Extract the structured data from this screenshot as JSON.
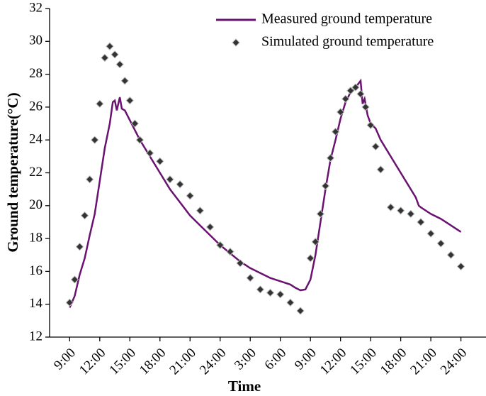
{
  "chart_data": {
    "type": "line_scatter",
    "x_label": "Time",
    "y_label": "Ground temperature(°C)",
    "xlim": [
      7,
      50.5
    ],
    "ylim": [
      12,
      32
    ],
    "yticks": [
      12,
      14,
      16,
      18,
      20,
      22,
      24,
      26,
      28,
      30,
      32
    ],
    "xticks": [
      {
        "value": 9,
        "label": "9:00"
      },
      {
        "value": 12,
        "label": "12:00"
      },
      {
        "value": 15,
        "label": "15:00"
      },
      {
        "value": 18,
        "label": "18:00"
      },
      {
        "value": 21,
        "label": "21:00"
      },
      {
        "value": 24,
        "label": "24:00"
      },
      {
        "value": 27,
        "label": "3:00"
      },
      {
        "value": 30,
        "label": "6:00"
      },
      {
        "value": 33,
        "label": "9:00"
      },
      {
        "value": 36,
        "label": "12:00"
      },
      {
        "value": 39,
        "label": "15:00"
      },
      {
        "value": 42,
        "label": "18:00"
      },
      {
        "value": 45,
        "label": "21:00"
      },
      {
        "value": 48,
        "label": "24:00"
      }
    ],
    "legend": "top-right",
    "series": [
      {
        "name": "Measured ground temperature",
        "kind": "line",
        "color": "#6a1270",
        "x": [
          9,
          9.5,
          10,
          10.5,
          11,
          11.5,
          12,
          12.5,
          13,
          13.3,
          13.5,
          13.7,
          14,
          14.2,
          14.5,
          15,
          16,
          17,
          18,
          19,
          20,
          21,
          22,
          23,
          24,
          25,
          26,
          27,
          28,
          29,
          30,
          31,
          31.5,
          32,
          32.5,
          33,
          33.5,
          34,
          34.5,
          35,
          35.5,
          36,
          36.5,
          37,
          37.5,
          38,
          38.2,
          38.4,
          38.7,
          39,
          39.5,
          40,
          41,
          42,
          43,
          43.5,
          43.8,
          44,
          45,
          46,
          47,
          48
        ],
        "values": [
          13.8,
          14.5,
          15.8,
          16.8,
          18.2,
          19.5,
          21.5,
          23.5,
          25.0,
          26.3,
          26.4,
          25.8,
          26.6,
          25.9,
          25.8,
          25.2,
          24.0,
          23.0,
          22.0,
          21.0,
          20.2,
          19.4,
          18.8,
          18.2,
          17.6,
          17.1,
          16.6,
          16.2,
          15.9,
          15.6,
          15.4,
          15.2,
          15.0,
          14.85,
          14.9,
          15.5,
          17.0,
          19.0,
          21.0,
          22.8,
          24.0,
          25.3,
          26.3,
          26.9,
          27.2,
          27.6,
          26.2,
          26.5,
          25.5,
          25.0,
          24.7,
          24.0,
          23.0,
          22.0,
          21.0,
          20.5,
          20.0,
          19.9,
          19.5,
          19.2,
          18.8,
          18.4
        ]
      },
      {
        "name": "Simulated ground temperature",
        "kind": "scatter",
        "color": "#333333",
        "x": [
          9,
          9.5,
          10,
          10.5,
          11,
          11.5,
          12,
          12.5,
          13,
          13.5,
          14,
          14.5,
          15,
          15.5,
          16,
          17,
          18,
          19,
          20,
          21,
          22,
          23,
          24,
          25,
          26,
          27,
          28,
          29,
          30,
          31,
          32,
          33,
          33.5,
          34,
          34.5,
          35,
          35.5,
          36,
          36.5,
          37,
          37.5,
          38,
          38.5,
          39,
          39.5,
          40,
          41,
          42,
          43,
          44,
          45,
          46,
          47,
          48
        ],
        "values": [
          14.1,
          15.5,
          17.5,
          19.4,
          21.6,
          24.0,
          26.2,
          29.0,
          29.7,
          29.2,
          28.6,
          27.6,
          26.4,
          25.0,
          24.0,
          23.2,
          22.7,
          21.6,
          21.3,
          20.6,
          19.7,
          18.7,
          17.6,
          17.2,
          16.5,
          15.6,
          14.9,
          14.7,
          14.6,
          14.1,
          13.6,
          16.8,
          17.8,
          19.5,
          21.2,
          22.9,
          24.5,
          25.7,
          26.5,
          27.0,
          27.2,
          26.8,
          26.0,
          24.9,
          23.6,
          22.2,
          19.9,
          19.7,
          19.5,
          19.0,
          18.3,
          17.7,
          17.0,
          16.3
        ]
      }
    ]
  }
}
